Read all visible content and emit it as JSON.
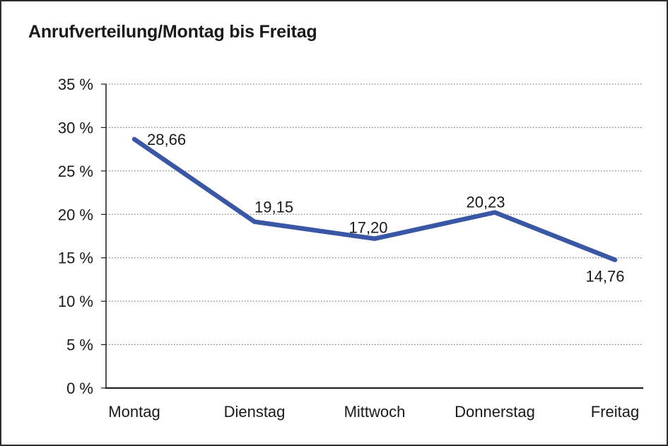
{
  "window": {
    "background": "#ffffff",
    "border_color": "#2e2e2e"
  },
  "chart_data": {
    "type": "line",
    "title": "Anrufverteilung/Montag bis Freitag",
    "categories": [
      "Montag",
      "Dienstag",
      "Mittwoch",
      "Donnerstag",
      "Freitag"
    ],
    "values": [
      28.66,
      19.15,
      17.2,
      20.23,
      14.76
    ],
    "data_labels": [
      "28,66",
      "19,15",
      "17,20",
      "20,23",
      "14,76"
    ],
    "y_ticks": [
      0,
      5,
      10,
      15,
      20,
      25,
      30,
      35
    ],
    "y_tick_labels": [
      "0 %",
      "5 %",
      "10 %",
      "15 %",
      "20 %",
      "25 %",
      "30 %",
      "35 %"
    ],
    "ylim": [
      0,
      35
    ],
    "xlabel": "",
    "ylabel": "",
    "legend": "none",
    "grid": "horizontal-dotted",
    "line_color": "#3A57A5",
    "grid_color": "#606060",
    "axis_color": "#1a1a1a",
    "text_color": "#1a1a1a"
  }
}
